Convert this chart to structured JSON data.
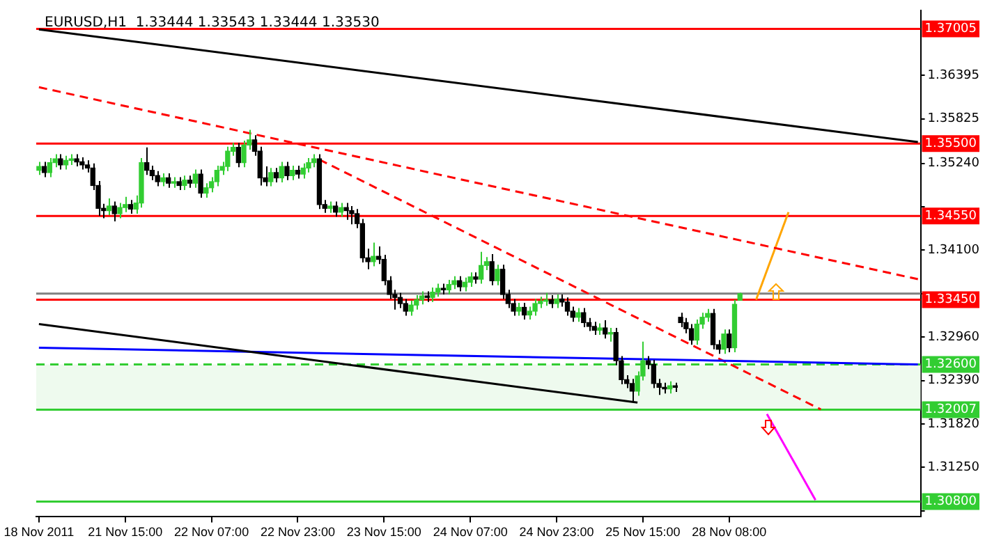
{
  "chart_data": {
    "type": "candlestick",
    "title": "EURUSD,H1  1.33444 1.33543 1.33444 1.33530",
    "categories": [
      "18 Nov 2011",
      null,
      null,
      null,
      null,
      null,
      null,
      null,
      null,
      null,
      null,
      null,
      null,
      null,
      null,
      null,
      "21 Nov 15:00",
      null,
      null,
      null,
      null,
      null,
      null,
      null,
      null,
      null,
      null,
      null,
      null,
      null,
      null,
      null,
      "22 Nov 07:00",
      null,
      null,
      null,
      null,
      null,
      null,
      null,
      null,
      null,
      null,
      null,
      null,
      null,
      null,
      null,
      "22 Nov 23:00",
      null,
      null,
      null,
      null,
      null,
      null,
      null,
      null,
      null,
      null,
      null,
      null,
      null,
      null,
      null,
      "23 Nov 15:00",
      null,
      null,
      null,
      null,
      null,
      null,
      null,
      null,
      null,
      null,
      null,
      null,
      null,
      null,
      null,
      "24 Nov 07:00",
      null,
      null,
      null,
      null,
      null,
      null,
      null,
      null,
      null,
      null,
      null,
      null,
      null,
      null,
      null,
      "24 Nov 23:00",
      null,
      null,
      null,
      null,
      null,
      null,
      null,
      null,
      null,
      null,
      null,
      null,
      null,
      null,
      null,
      "25 Nov 15:00",
      null,
      null,
      null,
      null,
      null,
      null,
      null,
      null,
      null,
      null,
      null,
      null,
      null,
      null,
      null,
      "28 Nov 08:00",
      null,
      null,
      null,
      null,
      null,
      null,
      null,
      null,
      null,
      null,
      null,
      null,
      null,
      null,
      null,
      null,
      null,
      null,
      null,
      null,
      null,
      null,
      null,
      null,
      null,
      null,
      null,
      null,
      null,
      null,
      null,
      null,
      null,
      null,
      null
    ],
    "ylim": [
      1.306,
      1.3725
    ],
    "yticks": [
      {
        "value": 1.3068,
        "label": null
      },
      {
        "value": 1.3125,
        "label": "1.31250"
      },
      {
        "value": 1.3182,
        "label": "1.31820"
      },
      {
        "value": 1.3239,
        "label": "1.32390"
      },
      {
        "value": 1.3296,
        "label": "1.32960"
      },
      {
        "value": 1.3353,
        "label": null
      },
      {
        "value": 1.341,
        "label": "1.34100"
      },
      {
        "value": 1.3467,
        "label": null
      },
      {
        "value": 1.3524,
        "label": "1.35240"
      },
      {
        "value": 1.35825,
        "label": "1.35825"
      },
      {
        "value": 1.36395,
        "label": "1.36395"
      }
    ],
    "colors": [
      "#32cd32",
      "#000000",
      "#32cd32",
      "#32cd32",
      "#000000",
      "#32cd32",
      "#32cd32",
      "#000000",
      "#000000",
      "#000000",
      "#000000",
      "#000000",
      "#000000",
      "#32cd32",
      "#000000",
      "#32cd32",
      "#32cd32",
      "#000000",
      "#32cd32",
      "#32cd32",
      "#000000",
      "#000000",
      "#000000",
      "#32cd32",
      "#000000",
      "#32cd32",
      "#000000",
      "#32cd32",
      "#000000",
      "#32cd32",
      "#000000",
      "#32cd32",
      "#32cd32",
      "#32cd32",
      "#32cd32",
      "#32cd32",
      "#32cd32",
      "#000000",
      "#32cd32",
      "#32cd32",
      "#000000",
      "#000000",
      "#000000",
      "#32cd32",
      "#000000",
      "#32cd32",
      "#000000",
      "#32cd32",
      "#000000",
      "#32cd32",
      "#32cd32",
      "#32cd32",
      "#000000",
      "#000000",
      "#32cd32",
      "#000000",
      "#32cd32",
      "#000000",
      "#000000",
      "#000000",
      "#000000",
      "#000000",
      "#32cd32",
      "#000000",
      "#000000",
      "#000000",
      "#000000",
      "#000000",
      "#000000",
      "#32cd32",
      "#32cd32",
      "#32cd32",
      "#000000",
      "#32cd32",
      "#32cd32",
      "#000000",
      "#32cd32",
      "#32cd32",
      "#000000",
      "#32cd32",
      "#32cd32",
      "#000000",
      "#32cd32",
      "#32cd32",
      "#000000",
      "#32cd32",
      "#000000",
      "#000000",
      "#000000",
      "#32cd32",
      "#000000",
      "#32cd32",
      "#32cd32",
      "#32cd32",
      "#32cd32",
      "#000000",
      "#32cd32",
      "#000000",
      "#000000",
      "#000000",
      "#32cd32",
      "#000000",
      "#000000",
      "#000000",
      "#32cd32",
      "#000000",
      "#32cd32",
      "#000000",
      "#000000",
      "#000000",
      "#000000",
      "#32cd32",
      "#32cd32",
      "#000000",
      "#000000",
      "#000000",
      "#000000",
      "#32cd32",
      "#000000",
      "#000000",
      "#000000",
      "#000000",
      "#32cd32",
      "#32cd32",
      "#32cd32",
      "#000000",
      "#000000",
      "#32cd32",
      "#000000",
      "#32cd32",
      "#32cd32",
      null,
      null,
      null,
      null,
      null,
      null,
      null,
      null,
      null,
      null,
      null,
      null,
      null,
      null,
      null,
      null,
      null,
      null,
      null,
      null,
      null,
      null,
      null,
      null,
      null,
      null,
      null,
      null,
      null,
      null,
      null,
      null,
      null
    ],
    "ohlc": [
      [
        1.3515,
        1.3526,
        1.3509,
        1.352
      ],
      [
        1.352,
        1.3526,
        1.3506,
        1.3512
      ],
      [
        1.3512,
        1.3531,
        1.3506,
        1.3525
      ],
      [
        1.3525,
        1.3536,
        1.3519,
        1.353
      ],
      [
        1.353,
        1.3536,
        1.3516,
        1.3522
      ],
      [
        1.3522,
        1.3534,
        1.3516,
        1.3528
      ],
      [
        1.3528,
        1.3536,
        1.3522,
        1.353
      ],
      [
        1.353,
        1.3536,
        1.352,
        1.3526
      ],
      [
        1.3526,
        1.3532,
        1.3516,
        1.3522
      ],
      [
        1.3522,
        1.3528,
        1.3512,
        1.3518
      ],
      [
        1.3518,
        1.3524,
        1.3489,
        1.3495
      ],
      [
        1.3495,
        1.3501,
        1.3455,
        1.3465
      ],
      [
        1.3465,
        1.3471,
        1.3452,
        1.3462
      ],
      [
        1.3462,
        1.3478,
        1.3456,
        1.3468
      ],
      [
        1.3468,
        1.3474,
        1.3448,
        1.3458
      ],
      [
        1.3458,
        1.3472,
        1.3452,
        1.3466
      ],
      [
        1.3466,
        1.348,
        1.346,
        1.347
      ],
      [
        1.347,
        1.3476,
        1.3458,
        1.3464
      ],
      [
        1.3464,
        1.3482,
        1.3458,
        1.3472
      ],
      [
        1.3472,
        1.3531,
        1.3466,
        1.3525
      ],
      [
        1.3525,
        1.3545,
        1.3509,
        1.3515
      ],
      [
        1.3515,
        1.3521,
        1.3502,
        1.3508
      ],
      [
        1.3508,
        1.3514,
        1.3494,
        1.35
      ],
      [
        1.35,
        1.3511,
        1.3494,
        1.3505
      ],
      [
        1.3505,
        1.3511,
        1.3492,
        1.3498
      ],
      [
        1.3498,
        1.3506,
        1.3492,
        1.35
      ],
      [
        1.35,
        1.3506,
        1.3489,
        1.3495
      ],
      [
        1.3495,
        1.3508,
        1.3489,
        1.3502
      ],
      [
        1.3502,
        1.3508,
        1.3492,
        1.3498
      ],
      [
        1.3498,
        1.3516,
        1.3492,
        1.351
      ],
      [
        1.351,
        1.3516,
        1.3479,
        1.3485
      ],
      [
        1.3485,
        1.3498,
        1.3479,
        1.3492
      ],
      [
        1.3492,
        1.3506,
        1.3486,
        1.35
      ],
      [
        1.35,
        1.3521,
        1.3494,
        1.3515
      ],
      [
        1.3515,
        1.3526,
        1.3509,
        1.352
      ],
      [
        1.352,
        1.3546,
        1.3514,
        1.354
      ],
      [
        1.354,
        1.3551,
        1.3534,
        1.3545
      ],
      [
        1.3545,
        1.3551,
        1.3519,
        1.3525
      ],
      [
        1.3525,
        1.3554,
        1.3519,
        1.3548
      ],
      [
        1.3548,
        1.3568,
        1.3542,
        1.3555
      ],
      [
        1.3555,
        1.3561,
        1.3534,
        1.354
      ],
      [
        1.354,
        1.3546,
        1.3495,
        1.3505
      ],
      [
        1.3505,
        1.352,
        1.3494,
        1.35
      ],
      [
        1.35,
        1.3518,
        1.3494,
        1.3512
      ],
      [
        1.3512,
        1.3518,
        1.3499,
        1.3505
      ],
      [
        1.3505,
        1.3526,
        1.3499,
        1.352
      ],
      [
        1.352,
        1.3526,
        1.3502,
        1.3508
      ],
      [
        1.3508,
        1.3521,
        1.3502,
        1.3515
      ],
      [
        1.3515,
        1.3521,
        1.3504,
        1.351
      ],
      [
        1.351,
        1.3524,
        1.3504,
        1.3518
      ],
      [
        1.3518,
        1.3531,
        1.3512,
        1.3525
      ],
      [
        1.3525,
        1.3536,
        1.3519,
        1.353
      ],
      [
        1.353,
        1.3536,
        1.3464,
        1.347
      ],
      [
        1.347,
        1.3476,
        1.3459,
        1.3465
      ],
      [
        1.3465,
        1.3474,
        1.3459,
        1.3468
      ],
      [
        1.3468,
        1.3474,
        1.3454,
        1.346
      ],
      [
        1.346,
        1.3472,
        1.3454,
        1.3466
      ],
      [
        1.3466,
        1.3472,
        1.345,
        1.3462
      ],
      [
        1.3462,
        1.3468,
        1.3444,
        1.3458
      ],
      [
        1.3458,
        1.3464,
        1.3439,
        1.3445
      ],
      [
        1.3445,
        1.3451,
        1.3394,
        1.34
      ],
      [
        1.34,
        1.3412,
        1.3385,
        1.3395
      ],
      [
        1.3395,
        1.342,
        1.3389,
        1.3402
      ],
      [
        1.3402,
        1.3415,
        1.3392,
        1.3398
      ],
      [
        1.3398,
        1.3404,
        1.3364,
        1.337
      ],
      [
        1.337,
        1.3376,
        1.3346,
        1.3352
      ],
      [
        1.3352,
        1.3358,
        1.3332,
        1.3348
      ],
      [
        1.3348,
        1.3354,
        1.3334,
        1.334
      ],
      [
        1.334,
        1.3346,
        1.3324,
        1.333
      ],
      [
        1.333,
        1.3344,
        1.3324,
        1.3338
      ],
      [
        1.3338,
        1.3351,
        1.3332,
        1.3345
      ],
      [
        1.3345,
        1.3356,
        1.3339,
        1.335
      ],
      [
        1.335,
        1.3356,
        1.3342,
        1.3348
      ],
      [
        1.3348,
        1.3361,
        1.3342,
        1.3355
      ],
      [
        1.3355,
        1.3366,
        1.3349,
        1.336
      ],
      [
        1.336,
        1.3366,
        1.3352,
        1.3358
      ],
      [
        1.3358,
        1.3371,
        1.3352,
        1.3365
      ],
      [
        1.3365,
        1.3376,
        1.3359,
        1.337
      ],
      [
        1.337,
        1.3376,
        1.3356,
        1.3362
      ],
      [
        1.3362,
        1.3374,
        1.3356,
        1.3368
      ],
      [
        1.3368,
        1.3381,
        1.3362,
        1.3375
      ],
      [
        1.3375,
        1.3381,
        1.3366,
        1.3372
      ],
      [
        1.3372,
        1.3408,
        1.3366,
        1.339
      ],
      [
        1.339,
        1.3401,
        1.3384,
        1.3395
      ],
      [
        1.3395,
        1.3405,
        1.3364,
        1.337
      ],
      [
        1.337,
        1.3391,
        1.3364,
        1.3385
      ],
      [
        1.3385,
        1.3391,
        1.3346,
        1.3352
      ],
      [
        1.3352,
        1.3358,
        1.3334,
        1.334
      ],
      [
        1.334,
        1.3346,
        1.3324,
        1.333
      ],
      [
        1.333,
        1.3341,
        1.3324,
        1.3335
      ],
      [
        1.3335,
        1.3341,
        1.3319,
        1.3325
      ],
      [
        1.3325,
        1.3336,
        1.3319,
        1.333
      ],
      [
        1.333,
        1.3346,
        1.3324,
        1.334
      ],
      [
        1.334,
        1.3349,
        1.3334,
        1.3343
      ],
      [
        1.3343,
        1.3354,
        1.3337,
        1.3345
      ],
      [
        1.3345,
        1.3351,
        1.3334,
        1.334
      ],
      [
        1.334,
        1.3352,
        1.3334,
        1.3346
      ],
      [
        1.3346,
        1.3352,
        1.3336,
        1.3342
      ],
      [
        1.3342,
        1.3348,
        1.3324,
        1.333
      ],
      [
        1.333,
        1.3336,
        1.3316,
        1.3322
      ],
      [
        1.3322,
        1.3334,
        1.3316,
        1.3328
      ],
      [
        1.3328,
        1.3334,
        1.3309,
        1.3315
      ],
      [
        1.3315,
        1.3321,
        1.3304,
        1.331
      ],
      [
        1.331,
        1.3316,
        1.3299,
        1.3305
      ],
      [
        1.3305,
        1.3314,
        1.3299,
        1.3308
      ],
      [
        1.3308,
        1.3318,
        1.3294,
        1.33
      ],
      [
        1.33,
        1.3308,
        1.329,
        1.3302
      ],
      [
        1.3302,
        1.3308,
        1.3259,
        1.3265
      ],
      [
        1.3265,
        1.3271,
        1.3234,
        1.324
      ],
      [
        1.324,
        1.3246,
        1.3229,
        1.3235
      ],
      [
        1.3235,
        1.3241,
        1.321,
        1.3225
      ],
      [
        1.3225,
        1.3251,
        1.3219,
        1.3245
      ],
      [
        1.3245,
        1.329,
        1.3239,
        1.3265
      ],
      [
        1.3265,
        1.3271,
        1.3254,
        1.326
      ],
      [
        1.326,
        1.3266,
        1.3229,
        1.3235
      ],
      [
        1.3235,
        1.3241,
        1.322,
        1.323
      ],
      [
        1.323,
        1.3236,
        1.3222,
        1.3228
      ],
      [
        1.3228,
        1.3238,
        1.3222,
        1.3232
      ],
      [
        1.3232,
        1.3236,
        1.3224,
        1.323
      ],
      [
        1.3322,
        1.3328,
        1.3309,
        1.3315
      ],
      [
        1.3315,
        1.3321,
        1.3301,
        1.3307
      ],
      [
        1.3307,
        1.3313,
        1.3286,
        1.3292
      ],
      [
        1.3292,
        1.3319,
        1.3286,
        1.3313
      ],
      [
        1.3313,
        1.3328,
        1.3307,
        1.3322
      ],
      [
        1.3322,
        1.3333,
        1.3316,
        1.3327
      ],
      [
        1.3327,
        1.3333,
        1.328,
        1.3286
      ],
      [
        1.3286,
        1.3292,
        1.3274,
        1.328
      ],
      [
        1.328,
        1.3306,
        1.3274,
        1.33
      ],
      [
        1.33,
        1.3306,
        1.3276,
        1.3282
      ],
      [
        1.3282,
        1.3345,
        1.3276,
        1.3339
      ],
      [
        1.33444,
        1.33543,
        1.33444,
        1.3353
      ],
      null,
      null,
      null,
      null,
      null,
      null,
      null,
      null,
      null,
      null,
      null,
      null,
      null,
      null,
      null,
      null,
      null,
      null,
      null,
      null,
      null,
      null,
      null,
      null,
      null,
      null,
      null,
      null,
      null,
      null,
      null,
      null,
      null
    ],
    "series": [
      {
        "type": "line",
        "color": "#000000",
        "values": [
          1.37,
          null,
          null,
          null,
          null,
          null,
          null,
          null,
          null,
          null,
          null,
          null,
          null,
          null,
          null,
          null,
          null,
          null,
          null,
          null,
          null,
          null,
          null,
          null,
          null,
          null,
          null,
          null,
          null,
          null,
          null,
          null,
          null,
          null,
          null,
          null,
          null,
          null,
          null,
          null,
          null,
          null,
          null,
          null,
          null,
          null,
          null,
          null,
          null,
          null,
          null,
          null,
          null,
          null,
          null,
          null,
          null,
          null,
          null,
          null,
          null,
          null,
          null,
          null,
          null,
          null,
          null,
          null,
          null,
          null,
          null,
          null,
          null,
          null,
          null,
          null,
          null,
          null,
          null,
          null,
          null,
          null,
          null,
          null,
          null,
          null,
          null,
          null,
          null,
          null,
          null,
          null,
          null,
          null,
          null,
          null,
          null,
          null,
          null,
          null,
          null,
          null,
          null,
          null,
          null,
          null,
          null,
          null,
          null,
          null,
          null,
          null,
          null,
          null,
          null,
          null,
          null,
          null,
          null,
          null,
          null,
          null,
          null,
          null,
          null,
          null,
          null,
          null,
          null,
          null,
          null,
          null,
          null,
          null,
          null,
          null,
          null,
          null,
          null,
          null,
          null,
          null,
          null,
          null,
          null,
          null,
          null,
          null,
          null,
          null,
          null,
          null,
          null,
          null,
          null,
          null,
          null,
          null,
          null,
          null,
          null,
          null,
          null,
          1.3552
        ]
      },
      {
        "type": "line",
        "color": "#000000",
        "values": [
          1.3313,
          null,
          null,
          null,
          null,
          null,
          null,
          null,
          null,
          null,
          null,
          null,
          null,
          null,
          null,
          null,
          null,
          null,
          null,
          null,
          null,
          null,
          null,
          null,
          null,
          null,
          null,
          null,
          null,
          null,
          null,
          null,
          null,
          null,
          null,
          null,
          null,
          null,
          null,
          null,
          null,
          null,
          null,
          null,
          null,
          null,
          null,
          null,
          null,
          null,
          null,
          null,
          null,
          null,
          null,
          null,
          null,
          null,
          null,
          null,
          null,
          null,
          null,
          null,
          null,
          null,
          null,
          null,
          null,
          null,
          null,
          null,
          null,
          null,
          null,
          null,
          null,
          null,
          null,
          null,
          null,
          null,
          null,
          null,
          null,
          null,
          null,
          null,
          null,
          null,
          null,
          null,
          null,
          null,
          null,
          null,
          null,
          null,
          null,
          null,
          null,
          null,
          null,
          null,
          null,
          null,
          null,
          null,
          null,
          null,
          null,
          1.321,
          null,
          null,
          null,
          null,
          null,
          null,
          null,
          null,
          null,
          null,
          null,
          null,
          null,
          null,
          null,
          null,
          null,
          null,
          null,
          null,
          null,
          null,
          null,
          null,
          null,
          null,
          null,
          null,
          null,
          null,
          null,
          null,
          null,
          null,
          null,
          null,
          null,
          null,
          null,
          null,
          null,
          null,
          null,
          null,
          null,
          null,
          null,
          null,
          null,
          null,
          null,
          null
        ]
      },
      {
        "type": "line",
        "color": "#0000ff",
        "values": [
          1.3282,
          null,
          null,
          null,
          null,
          null,
          null,
          null,
          null,
          null,
          null,
          null,
          null,
          null,
          null,
          null,
          null,
          null,
          null,
          null,
          null,
          null,
          null,
          null,
          null,
          null,
          null,
          null,
          null,
          null,
          null,
          null,
          null,
          null,
          null,
          null,
          null,
          null,
          null,
          null,
          null,
          null,
          null,
          null,
          null,
          null,
          null,
          null,
          null,
          null,
          null,
          null,
          null,
          null,
          null,
          null,
          null,
          null,
          null,
          null,
          null,
          null,
          null,
          null,
          null,
          null,
          null,
          null,
          null,
          null,
          null,
          null,
          null,
          null,
          null,
          null,
          null,
          null,
          null,
          null,
          null,
          null,
          null,
          null,
          null,
          null,
          null,
          null,
          null,
          null,
          null,
          null,
          null,
          null,
          null,
          null,
          null,
          null,
          null,
          null,
          null,
          null,
          null,
          null,
          null,
          null,
          null,
          null,
          null,
          null,
          null,
          null,
          null,
          null,
          null,
          null,
          null,
          null,
          null,
          null,
          null,
          null,
          null,
          null,
          null,
          null,
          null,
          null,
          null,
          null,
          null,
          null,
          null,
          null,
          null,
          null,
          null,
          null,
          null,
          null,
          null,
          null,
          null,
          null,
          null,
          null,
          null,
          null,
          null,
          null,
          null,
          null,
          null,
          null,
          null,
          null,
          null,
          null,
          null,
          null,
          null,
          null,
          null,
          1.326
        ]
      },
      {
        "type": "line",
        "color": "#ff0000",
        "line_style": "dashed",
        "values": [
          1.3624,
          null,
          null,
          null,
          null,
          null,
          null,
          null,
          null,
          null,
          null,
          null,
          null,
          null,
          null,
          null,
          null,
          null,
          null,
          null,
          null,
          null,
          null,
          null,
          null,
          null,
          null,
          null,
          null,
          null,
          null,
          null,
          null,
          null,
          null,
          null,
          null,
          null,
          null,
          null,
          null,
          null,
          null,
          null,
          null,
          null,
          null,
          null,
          null,
          null,
          null,
          null,
          null,
          null,
          null,
          null,
          null,
          null,
          null,
          null,
          null,
          null,
          null,
          null,
          null,
          null,
          null,
          null,
          null,
          null,
          null,
          null,
          null,
          null,
          null,
          null,
          null,
          null,
          null,
          null,
          null,
          null,
          null,
          null,
          null,
          null,
          null,
          null,
          null,
          null,
          null,
          null,
          null,
          null,
          null,
          null,
          null,
          null,
          null,
          null,
          null,
          null,
          null,
          null,
          null,
          null,
          null,
          null,
          null,
          null,
          null,
          null,
          null,
          null,
          null,
          null,
          null,
          null,
          null,
          null,
          null,
          null,
          null,
          null,
          null,
          null,
          null,
          null,
          null,
          null,
          null,
          null,
          null,
          null,
          null,
          null,
          null,
          null,
          null,
          null,
          null,
          null,
          null,
          null,
          null,
          null,
          null,
          null,
          null,
          null,
          null,
          null,
          null,
          null,
          null,
          null,
          null,
          null,
          null,
          null,
          null,
          null,
          null,
          1.3372
        ]
      },
      {
        "type": "line",
        "color": "#ff0000",
        "line_style": "dashed",
        "values": [
          null,
          null,
          null,
          null,
          null,
          null,
          null,
          null,
          null,
          null,
          null,
          null,
          null,
          null,
          null,
          null,
          null,
          null,
          null,
          null,
          null,
          null,
          null,
          null,
          null,
          null,
          null,
          null,
          null,
          null,
          null,
          null,
          null,
          null,
          null,
          null,
          null,
          null,
          null,
          null,
          null,
          null,
          null,
          null,
          null,
          null,
          null,
          null,
          null,
          null,
          null,
          null,
          1.3529,
          null,
          null,
          null,
          null,
          null,
          null,
          null,
          null,
          null,
          null,
          null,
          null,
          null,
          null,
          null,
          null,
          null,
          null,
          null,
          null,
          null,
          null,
          null,
          null,
          null,
          null,
          null,
          null,
          null,
          null,
          null,
          null,
          null,
          null,
          null,
          null,
          null,
          null,
          null,
          null,
          null,
          null,
          null,
          null,
          null,
          null,
          null,
          null,
          null,
          null,
          null,
          null,
          null,
          null,
          null,
          null,
          null,
          null,
          null,
          null,
          null,
          null,
          null,
          null,
          null,
          null,
          null,
          null,
          null,
          null,
          null,
          null,
          null,
          null,
          null,
          null,
          null,
          null,
          null,
          null,
          null,
          null,
          null,
          null,
          null,
          null,
          null,
          null,
          null,
          null,
          null,
          null,
          1.3201,
          null,
          null,
          null,
          null,
          null,
          null,
          null,
          null,
          null,
          null,
          null,
          null,
          null,
          null,
          null,
          null,
          null,
          null
        ]
      },
      {
        "type": "line",
        "color": "#ffa500",
        "values": [
          null,
          null,
          null,
          null,
          null,
          null,
          null,
          null,
          null,
          null,
          null,
          null,
          null,
          null,
          null,
          null,
          null,
          null,
          null,
          null,
          null,
          null,
          null,
          null,
          null,
          null,
          null,
          null,
          null,
          null,
          null,
          null,
          null,
          null,
          null,
          null,
          null,
          null,
          null,
          null,
          null,
          null,
          null,
          null,
          null,
          null,
          null,
          null,
          null,
          null,
          null,
          null,
          null,
          null,
          null,
          null,
          null,
          null,
          null,
          null,
          null,
          null,
          null,
          null,
          null,
          null,
          null,
          null,
          null,
          null,
          null,
          null,
          null,
          null,
          null,
          null,
          null,
          null,
          null,
          null,
          null,
          null,
          null,
          null,
          null,
          null,
          null,
          null,
          null,
          null,
          null,
          null,
          null,
          null,
          null,
          null,
          null,
          null,
          null,
          null,
          null,
          null,
          null,
          null,
          null,
          null,
          null,
          null,
          null,
          null,
          null,
          null,
          null,
          null,
          null,
          null,
          null,
          null,
          null,
          null,
          null,
          null,
          null,
          null,
          null,
          null,
          null,
          null,
          null,
          null,
          null,
          null,
          null,
          1.3345,
          null,
          null,
          null,
          null,
          null,
          1.346,
          null,
          null,
          null,
          null,
          null,
          null,
          null,
          null,
          null,
          null,
          null,
          null,
          null,
          null,
          null,
          null,
          null,
          null,
          null,
          null,
          null,
          null,
          null,
          null
        ]
      },
      {
        "type": "line",
        "color": "#ff00ff",
        "values": [
          null,
          null,
          null,
          null,
          null,
          null,
          null,
          null,
          null,
          null,
          null,
          null,
          null,
          null,
          null,
          null,
          null,
          null,
          null,
          null,
          null,
          null,
          null,
          null,
          null,
          null,
          null,
          null,
          null,
          null,
          null,
          null,
          null,
          null,
          null,
          null,
          null,
          null,
          null,
          null,
          null,
          null,
          null,
          null,
          null,
          null,
          null,
          null,
          null,
          null,
          null,
          null,
          null,
          null,
          null,
          null,
          null,
          null,
          null,
          null,
          null,
          null,
          null,
          null,
          null,
          null,
          null,
          null,
          null,
          null,
          null,
          null,
          null,
          null,
          null,
          null,
          null,
          null,
          null,
          null,
          null,
          null,
          null,
          null,
          null,
          null,
          null,
          null,
          null,
          null,
          null,
          null,
          null,
          null,
          null,
          null,
          null,
          null,
          null,
          null,
          null,
          null,
          null,
          null,
          null,
          null,
          null,
          null,
          null,
          null,
          null,
          null,
          null,
          null,
          null,
          null,
          null,
          null,
          null,
          null,
          null,
          null,
          null,
          null,
          null,
          null,
          null,
          null,
          null,
          null,
          null,
          null,
          null,
          null,
          null,
          1.3195,
          null,
          null,
          null,
          null,
          null,
          null,
          null,
          null,
          1.3082,
          null,
          null,
          null,
          null,
          null,
          null,
          null,
          null,
          null,
          null,
          null,
          null,
          null,
          null,
          null,
          null,
          null,
          null,
          null
        ]
      }
    ],
    "ref_lines": [
      {
        "axis": "y",
        "value": 1.37005,
        "label": "1.37005",
        "color": "#ff0000"
      },
      {
        "axis": "y",
        "value": 1.355,
        "label": "1.35500",
        "color": "#ff0000"
      },
      {
        "axis": "y",
        "value": 1.3455,
        "label": "1.34550",
        "color": "#ff0000"
      },
      {
        "axis": "y",
        "value": 1.3353,
        "color": "#808080"
      },
      {
        "axis": "y",
        "value": 1.3345,
        "label": "1.33450",
        "color": "#ff0000"
      },
      {
        "axis": "y",
        "value": 1.326,
        "label": "1.32600",
        "color": "#32cd32",
        "line_style": "dashed"
      },
      {
        "axis": "y",
        "value": 1.32007,
        "label": "1.32007",
        "color": "#32cd32"
      },
      {
        "axis": "y",
        "value": 1.308,
        "label": "1.30800",
        "color": "#32cd32"
      }
    ],
    "bands": [
      {
        "axis": "y",
        "from": 1.32007,
        "to": 1.326,
        "color": "#eefaee"
      }
    ]
  }
}
